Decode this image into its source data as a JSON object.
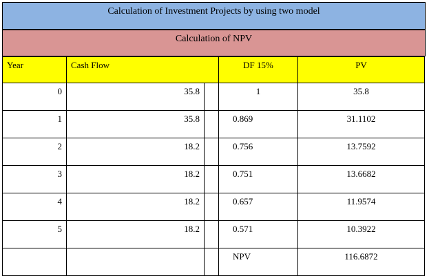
{
  "title": "Calculation of Investment Projects by using two model",
  "subtitle": "Calculation of NPV",
  "headers": {
    "year": "Year",
    "cash_flow": "Cash Flow",
    "df": "DF 15%",
    "pv": "PV"
  },
  "rows": [
    {
      "year": "0",
      "cash_flow": "35.8",
      "df": "1",
      "pv": "35.8"
    },
    {
      "year": "1",
      "cash_flow": "35.8",
      "df": "0.869",
      "pv": "31.1102"
    },
    {
      "year": "2",
      "cash_flow": "18.2",
      "df": "0.756",
      "pv": "13.7592"
    },
    {
      "year": "3",
      "cash_flow": "18.2",
      "df": "0.751",
      "pv": "13.6682"
    },
    {
      "year": "4",
      "cash_flow": "18.2",
      "df": "0.657",
      "pv": "11.9574"
    },
    {
      "year": "5",
      "cash_flow": "18.2",
      "df": "0.571",
      "pv": "10.3922"
    }
  ],
  "total": {
    "label": "NPV",
    "value": "116.6872"
  },
  "colors": {
    "title_bg": "#8db3e2",
    "subtitle_bg": "#d99594",
    "header_bg": "#ffff00"
  }
}
